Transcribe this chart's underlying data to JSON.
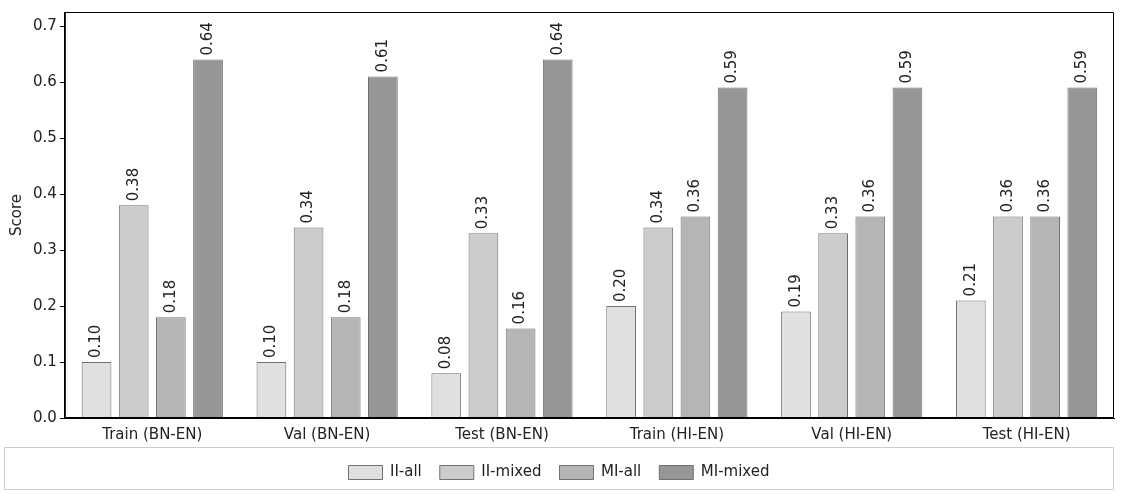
{
  "chart_data": {
    "type": "bar",
    "ylabel": "Score",
    "categories": [
      "Train (BN-EN)",
      "Val (BN-EN)",
      "Test (BN-EN)",
      "Train (HI-EN)",
      "Val (HI-EN)",
      "Test (HI-EN)"
    ],
    "series": [
      {
        "name": "II-all",
        "color": "#e0e0e0",
        "values": [
          0.1,
          0.1,
          0.08,
          0.2,
          0.19,
          0.21
        ],
        "value_labels": [
          "0.10",
          "0.10",
          "0.08",
          "0.20",
          "0.19",
          "0.21"
        ]
      },
      {
        "name": "II-mixed",
        "color": "#cccccc",
        "values": [
          0.38,
          0.34,
          0.33,
          0.34,
          0.33,
          0.36
        ],
        "value_labels": [
          "0.38",
          "0.34",
          "0.33",
          "0.34",
          "0.33",
          "0.36"
        ]
      },
      {
        "name": "MI-all",
        "color": "#b5b5b5",
        "values": [
          0.18,
          0.18,
          0.16,
          0.36,
          0.36,
          0.36
        ],
        "value_labels": [
          "0.18",
          "0.18",
          "0.16",
          "0.36",
          "0.36",
          "0.36"
        ]
      },
      {
        "name": "MI-mixed",
        "color": "#969696",
        "values": [
          0.64,
          0.61,
          0.64,
          0.59,
          0.59,
          0.59
        ],
        "value_labels": [
          "0.64",
          "0.61",
          "0.64",
          "0.59",
          "0.59",
          "0.59"
        ]
      }
    ],
    "ylim": [
      0,
      0.725
    ],
    "yticks": [
      {
        "value": 0,
        "label": "0.0"
      },
      0.1,
      0.2,
      0.3,
      0.4,
      0.5,
      0.6,
      0.7
    ],
    "grid": false,
    "legend": "bottom"
  }
}
